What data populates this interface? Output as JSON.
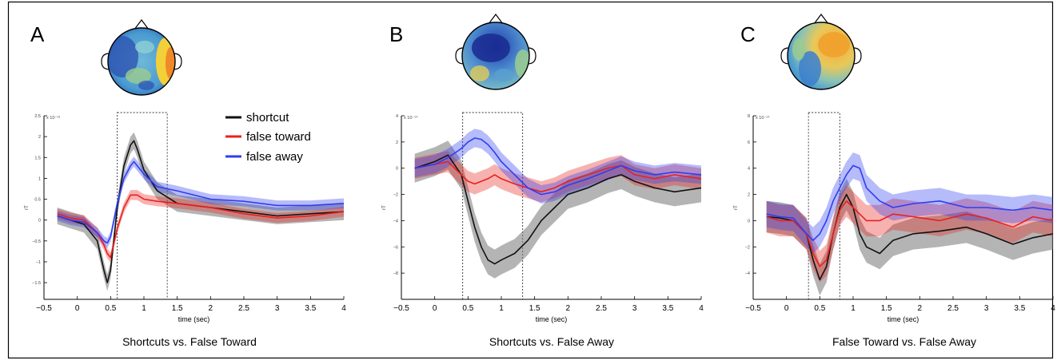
{
  "figure": {
    "legend": [
      {
        "label": "shortcut",
        "color": "#111111"
      },
      {
        "label": "false toward",
        "color": "#e8211e"
      },
      {
        "label": "false away",
        "color": "#2f3df0"
      }
    ],
    "panels": [
      {
        "letter": "A",
        "subtitle": "Shortcuts vs. False Toward",
        "xlabel": "time (sec)",
        "ylabel": "rT",
        "exponent": "x 10⁻¹³"
      },
      {
        "letter": "B",
        "subtitle": "Shortcuts vs. False Away",
        "xlabel": "time (sec)",
        "ylabel": "rT",
        "exponent": "x 10⁻¹⁴"
      },
      {
        "letter": "C",
        "subtitle": "False Toward vs. False Away",
        "xlabel": "time (sec)",
        "ylabel": "rT",
        "exponent": "x 10⁻¹⁴"
      }
    ]
  },
  "chart_data": [
    {
      "type": "line",
      "title": "Shortcuts vs. False Toward",
      "xlabel": "time (sec)",
      "ylabel": "rT",
      "y_multiplier": "x 10⁻¹³",
      "xlim": [
        -0.5,
        4
      ],
      "ylim": [
        -1.9,
        2.5
      ],
      "xticks": [
        -0.5,
        0,
        0.5,
        1,
        1.5,
        2,
        2.5,
        3,
        3.5,
        4
      ],
      "yticks": [
        -1.5,
        -1,
        -0.5,
        0,
        0.5,
        1,
        1.5,
        2,
        2.5
      ],
      "highlight_window": [
        0.6,
        1.35
      ],
      "legend_position": "top-right",
      "x": [
        -0.3,
        -0.1,
        0.1,
        0.3,
        0.4,
        0.45,
        0.5,
        0.6,
        0.7,
        0.8,
        0.85,
        0.9,
        1.0,
        1.2,
        1.5,
        2.0,
        2.5,
        3.0,
        3.5,
        4.0
      ],
      "series": [
        {
          "name": "shortcut",
          "color": "#111111",
          "values": [
            0.1,
            0.0,
            -0.1,
            -0.5,
            -1.2,
            -1.5,
            -1.2,
            0.3,
            1.3,
            1.8,
            1.9,
            1.7,
            1.2,
            0.7,
            0.4,
            0.3,
            0.2,
            0.1,
            0.15,
            0.2
          ],
          "error": 0.2
        },
        {
          "name": "false toward",
          "color": "#e8211e",
          "values": [
            0.15,
            0.05,
            0.0,
            -0.3,
            -0.6,
            -0.8,
            -0.9,
            -0.2,
            0.3,
            0.6,
            0.6,
            0.6,
            0.5,
            0.45,
            0.4,
            0.3,
            0.15,
            0.05,
            0.1,
            0.2
          ],
          "error": 0.12
        },
        {
          "name": "false away",
          "color": "#2f3df0",
          "values": [
            0.1,
            0.0,
            -0.05,
            -0.3,
            -0.5,
            -0.55,
            -0.4,
            0.4,
            1.0,
            1.3,
            1.4,
            1.3,
            1.1,
            0.8,
            0.7,
            0.5,
            0.45,
            0.35,
            0.35,
            0.4
          ],
          "error": 0.12
        }
      ]
    },
    {
      "type": "line",
      "title": "Shortcuts vs. False Away",
      "xlabel": "time (sec)",
      "ylabel": "rT",
      "y_multiplier": "x 10⁻¹⁴",
      "xlim": [
        -0.5,
        4
      ],
      "ylim": [
        -10,
        4
      ],
      "xticks": [
        -0.5,
        0,
        0.5,
        1,
        1.5,
        2,
        2.5,
        3,
        3.5,
        4
      ],
      "yticks": [
        -8,
        -6,
        -4,
        -2,
        0,
        2,
        4
      ],
      "highlight_window": [
        0.42,
        1.32
      ],
      "x": [
        -0.3,
        0.0,
        0.2,
        0.4,
        0.5,
        0.6,
        0.7,
        0.8,
        0.9,
        1.0,
        1.2,
        1.4,
        1.6,
        1.8,
        2.0,
        2.3,
        2.6,
        2.8,
        3.0,
        3.3,
        3.6,
        4.0
      ],
      "series": [
        {
          "name": "shortcut",
          "color": "#111111",
          "values": [
            0.0,
            0.5,
            1.0,
            -0.5,
            -2.5,
            -4.5,
            -6.0,
            -7.0,
            -7.3,
            -7.0,
            -6.5,
            -5.5,
            -4.0,
            -3.0,
            -2.0,
            -1.5,
            -0.8,
            -0.5,
            -1.0,
            -1.5,
            -1.8,
            -1.5
          ],
          "error": 1.1
        },
        {
          "name": "false toward",
          "color": "#e8211e",
          "values": [
            0.0,
            0.3,
            0.5,
            -0.5,
            -1.0,
            -1.2,
            -1.0,
            -0.8,
            -0.5,
            -0.8,
            -1.2,
            -1.5,
            -1.8,
            -1.5,
            -1.0,
            -0.5,
            0.0,
            0.2,
            -0.5,
            -0.8,
            -0.5,
            -0.8
          ],
          "error": 0.8
        },
        {
          "name": "false away",
          "color": "#2f3df0",
          "values": [
            0.0,
            0.3,
            0.8,
            1.5,
            2.0,
            2.3,
            2.2,
            1.8,
            1.2,
            0.5,
            -0.5,
            -1.5,
            -2.0,
            -1.8,
            -1.3,
            -0.8,
            -0.2,
            0.2,
            -0.2,
            -0.5,
            -0.3,
            -0.5
          ],
          "error": 0.7
        }
      ]
    },
    {
      "type": "line",
      "title": "False Toward vs. False Away",
      "xlabel": "time (sec)",
      "ylabel": "rT",
      "y_multiplier": "x 10⁻¹⁴",
      "xlim": [
        -0.5,
        4
      ],
      "ylim": [
        -6,
        8
      ],
      "xticks": [
        -0.5,
        0,
        0.5,
        1,
        1.5,
        2,
        2.5,
        3,
        3.5,
        4
      ],
      "yticks": [
        -4,
        -2,
        0,
        2,
        4,
        6,
        8
      ],
      "highlight_window": [
        0.33,
        0.8
      ],
      "x": [
        -0.3,
        -0.1,
        0.1,
        0.3,
        0.4,
        0.5,
        0.6,
        0.7,
        0.8,
        0.9,
        1.0,
        1.1,
        1.2,
        1.4,
        1.6,
        1.9,
        2.3,
        2.7,
        3.0,
        3.4,
        3.7,
        4.0
      ],
      "series": [
        {
          "name": "shortcut",
          "color": "#111111",
          "values": [
            0.3,
            0.2,
            0.0,
            -1.0,
            -3.0,
            -4.5,
            -3.5,
            -1.0,
            1.0,
            2.0,
            1.0,
            -1.0,
            -2.0,
            -2.5,
            -1.5,
            -1.0,
            -0.8,
            -0.5,
            -1.0,
            -1.8,
            -1.3,
            -1.0
          ],
          "error": 1.2
        },
        {
          "name": "false toward",
          "color": "#e8211e",
          "values": [
            0.3,
            0.0,
            0.0,
            -1.0,
            -2.5,
            -3.5,
            -3.0,
            -1.0,
            0.8,
            1.5,
            1.0,
            0.5,
            0.0,
            0.0,
            0.5,
            0.3,
            0.0,
            0.5,
            0.2,
            -0.5,
            0.3,
            0.0
          ],
          "error": 1.2
        },
        {
          "name": "false away",
          "color": "#2f3df0",
          "values": [
            0.5,
            0.3,
            0.2,
            -1.0,
            -1.5,
            -1.0,
            0.0,
            1.5,
            2.5,
            3.5,
            4.2,
            4.0,
            2.5,
            1.5,
            1.0,
            1.3,
            1.5,
            1.0,
            1.0,
            0.8,
            1.0,
            0.8
          ],
          "error": 1.0
        }
      ]
    }
  ]
}
